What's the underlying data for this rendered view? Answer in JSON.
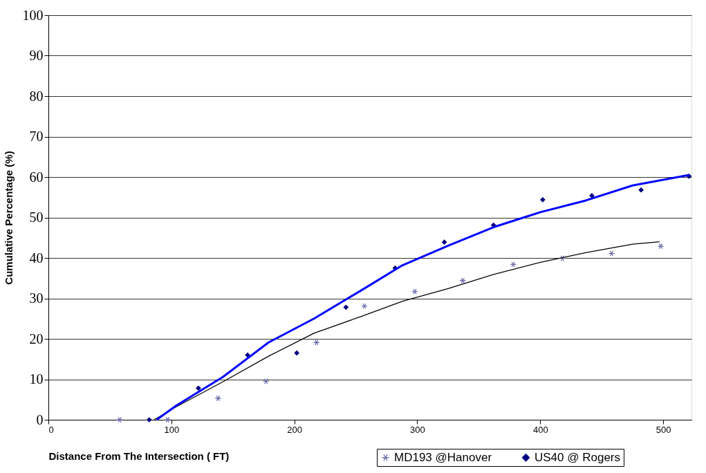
{
  "chart_data": {
    "type": "scatter",
    "xlabel": "Distance From The Intersection ( FT)",
    "ylabel": "Cumulative Percentage (%)",
    "xlim": [
      0,
      523
    ],
    "xticks": [
      0,
      100,
      200,
      300,
      400,
      500
    ],
    "ylim": [
      0,
      100
    ],
    "yticks": [
      0,
      10,
      20,
      30,
      40,
      50,
      60,
      70,
      80,
      90,
      100
    ],
    "grid": "y",
    "legend": "bottom right",
    "series": [
      {
        "name": "MD193 @Hanover",
        "color": "#6f6fb0",
        "marker": "cross",
        "x": [
          58,
          97,
          138,
          177,
          218,
          257,
          298,
          337,
          378,
          418,
          458,
          498
        ],
        "values": [
          0,
          0,
          5.3,
          9.5,
          19.1,
          28.1,
          31.7,
          34.4,
          38.4,
          39.9,
          41.1,
          42.9
        ]
      },
      {
        "name": "US40 @ Rogers",
        "color": "#000080",
        "marker": "diamond",
        "x": [
          82,
          122,
          162,
          202,
          242,
          282,
          322,
          362,
          402,
          442,
          482,
          521
        ],
        "values": [
          0,
          7.8,
          16.0,
          16.5,
          27.8,
          37.5,
          43.9,
          48.1,
          54.4,
          55.4,
          56.8,
          60.2
        ]
      },
      {
        "type": "line",
        "color": "#000000",
        "x": [
          86,
          104,
          142,
          179,
          216,
          254,
          288,
          325,
          362,
          400,
          437,
          475,
          497
        ],
        "values": [
          0,
          3.2,
          9.4,
          15.7,
          21.4,
          25.5,
          29.3,
          32.4,
          35.9,
          38.9,
          41.3,
          43.4,
          44.0
        ]
      },
      {
        "type": "line",
        "color": "#0000ff",
        "x": [
          88,
          104,
          142,
          179,
          216,
          254,
          288,
          325,
          362,
          400,
          437,
          475,
          521
        ],
        "values": [
          0,
          3.5,
          10.6,
          19.1,
          25.0,
          31.9,
          38.2,
          43.0,
          47.6,
          51.3,
          54.2,
          57.9,
          60.5
        ]
      }
    ]
  }
}
